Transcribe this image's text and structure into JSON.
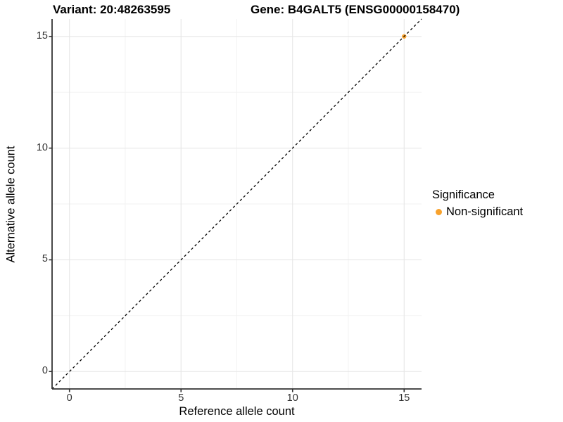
{
  "titles": {
    "left": "Variant: 20:48263595",
    "right": "Gene: B4GALT5 (ENSG00000158470)"
  },
  "chart_data": {
    "type": "scatter",
    "title_left": "Variant: 20:48263595",
    "title_right": "Gene: B4GALT5 (ENSG00000158470)",
    "xlabel": "Reference allele count",
    "ylabel": "Alternative allele count",
    "xlim": [
      -0.78,
      15.78
    ],
    "ylim": [
      -0.78,
      15.78
    ],
    "x_ticks": [
      0,
      5,
      10,
      15
    ],
    "y_ticks": [
      0,
      5,
      10,
      15
    ],
    "x_minor_ticks": [
      2.5,
      7.5,
      12.5
    ],
    "y_minor_ticks": [
      2.5,
      7.5,
      12.5
    ],
    "grid": true,
    "identity_line": {
      "style": "dashed",
      "color": "#000000",
      "from": [
        -0.78,
        -0.78
      ],
      "to": [
        15.78,
        15.78
      ]
    },
    "series": [
      {
        "name": "Non-significant",
        "color": "#F8A22C",
        "points": [
          {
            "x": 15,
            "y": 15
          }
        ]
      }
    ],
    "legend": {
      "title": "Significance",
      "position": "right",
      "items": [
        {
          "label": "Non-significant",
          "color": "#F8A22C"
        }
      ]
    }
  },
  "style": {
    "axis_color": "#333333",
    "tick_label_color": "#333333",
    "grid_major_color": "#E6E6E6",
    "grid_minor_color": "#F2F2F2",
    "point_color": "#F8A22C",
    "background": "#FFFFFF"
  }
}
